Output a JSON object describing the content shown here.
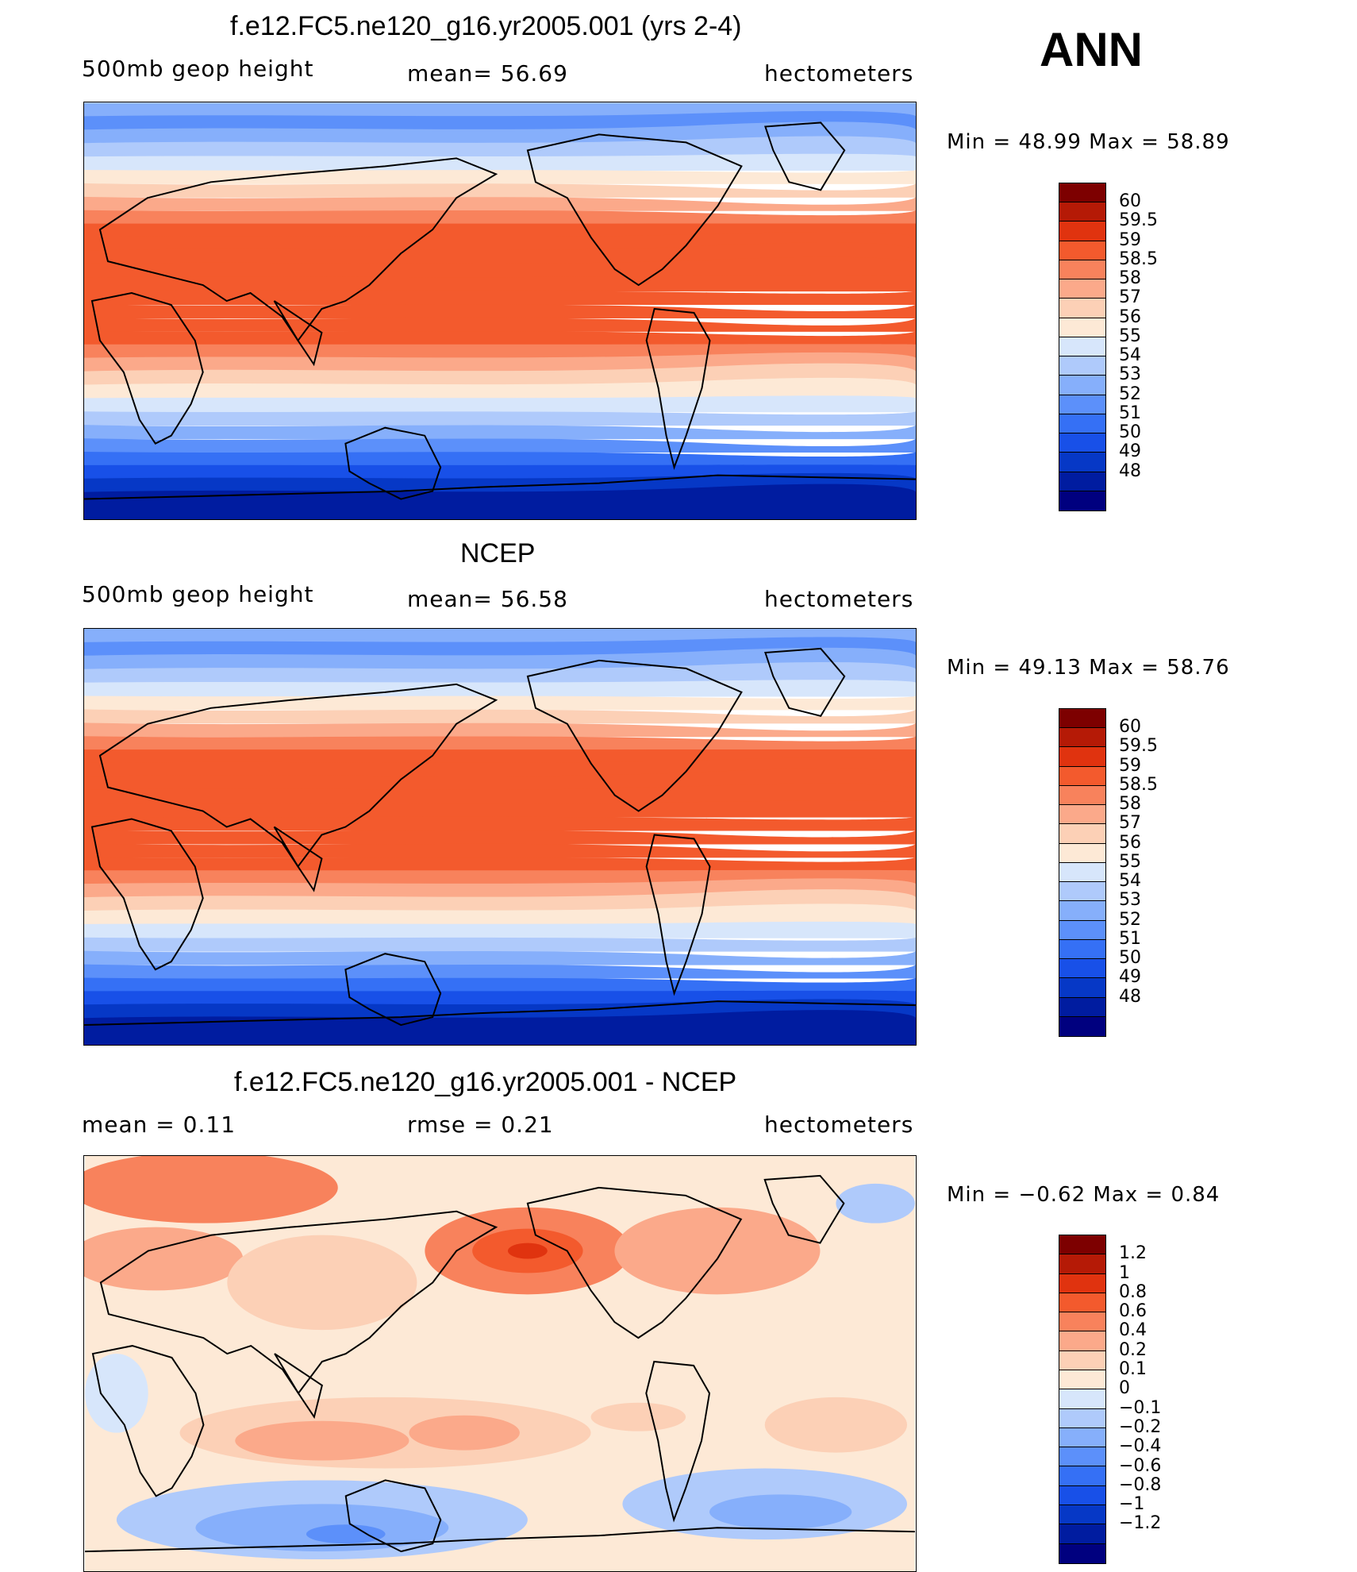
{
  "season": "ANN",
  "colors": {
    "levels": [
      "#00007f",
      "#001ca0",
      "#0638c6",
      "#1850e8",
      "#3570f5",
      "#5c90fa",
      "#86affb",
      "#afcafb",
      "#d7e6fb",
      "#fde9d6",
      "#fcd0b6",
      "#fba98a",
      "#f8825c",
      "#f35a2d",
      "#e0330f",
      "#b51a06",
      "#7d0000"
    ]
  },
  "chart_data": [
    {
      "type": "heatmap",
      "title": "f.e12.FC5.ne120_g16.yr2005.001 (yrs 2-4)",
      "left_label": "500mb  geop  height",
      "center_label": "mean=   56.69",
      "units": "hectometers",
      "min_label": "Min  =    48.99  Max  =    58.89",
      "min": 48.99,
      "max": 58.89,
      "mean": 56.69,
      "levels": [
        "60",
        "59.5",
        "59",
        "58.5",
        "58",
        "57",
        "56",
        "55",
        "54",
        "53",
        "52",
        "51",
        "50",
        "49",
        "48"
      ]
    },
    {
      "type": "heatmap",
      "title": "NCEP",
      "left_label": "500mb  geop  height",
      "center_label": "mean=   56.58",
      "units": "hectometers",
      "min_label": "Min  =    49.13  Max  =    58.76",
      "min": 49.13,
      "max": 58.76,
      "mean": 56.58,
      "levels": [
        "60",
        "59.5",
        "59",
        "58.5",
        "58",
        "57",
        "56",
        "55",
        "54",
        "53",
        "52",
        "51",
        "50",
        "49",
        "48"
      ]
    },
    {
      "type": "heatmap",
      "title": "f.e12.FC5.ne120_g16.yr2005.001 - NCEP",
      "left_label": "mean  =     0.11",
      "center_label": "rmse  =     0.21",
      "units": "hectometers",
      "min_label": "Min  =    −0.62  Max  =      0.84",
      "min": -0.62,
      "max": 0.84,
      "mean": 0.11,
      "rmse": 0.21,
      "levels": [
        "1.2",
        "1",
        "0.8",
        "0.6",
        "0.4",
        "0.2",
        "0.1",
        "0",
        "−0.1",
        "−0.2",
        "−0.4",
        "−0.6",
        "−0.8",
        "−1",
        "−1.2"
      ]
    }
  ]
}
